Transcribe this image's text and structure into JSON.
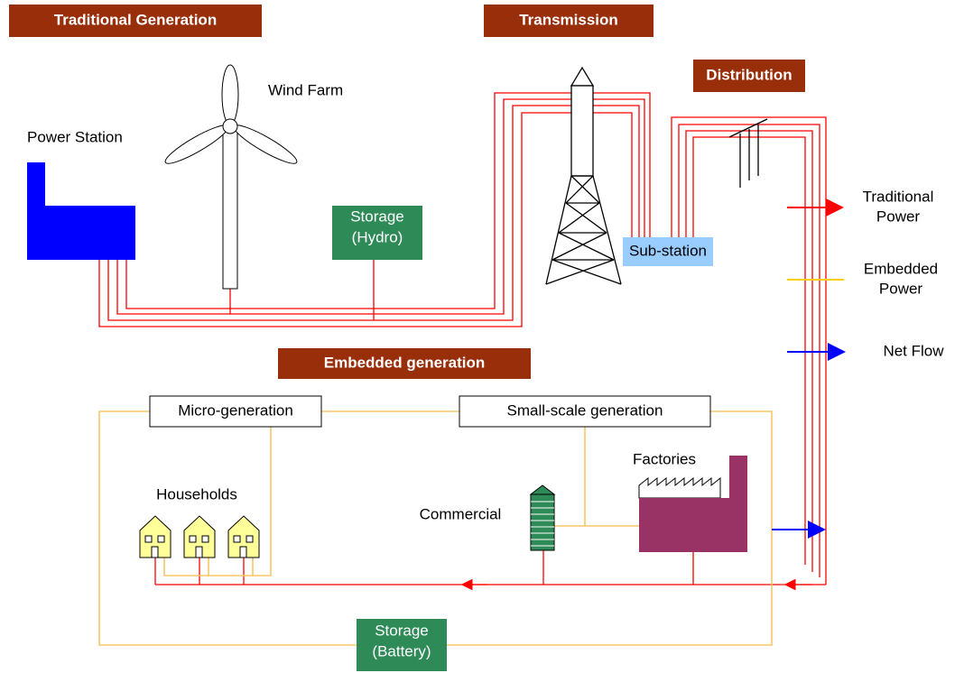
{
  "sections": {
    "traditional": "Traditional Generation",
    "transmission": "Transmission",
    "distribution": "Distribution",
    "embedded": "Embedded generation"
  },
  "labels": {
    "power_station": "Power Station",
    "wind_farm": "Wind Farm",
    "storage_hydro": [
      "Storage",
      "(Hydro)"
    ],
    "sub_station": "Sub-station",
    "micro_generation": "Micro-generation",
    "small_scale_generation": "Small-scale generation",
    "households": "Households",
    "commercial": "Commercial",
    "factories": "Factories",
    "storage_battery": [
      "Storage",
      "(Battery)"
    ]
  },
  "legend": [
    {
      "lines": [
        "Traditional",
        "Power"
      ]
    },
    {
      "lines": [
        "Embedded",
        "Power"
      ]
    },
    {
      "lines": [
        "Net Flow"
      ]
    }
  ]
}
